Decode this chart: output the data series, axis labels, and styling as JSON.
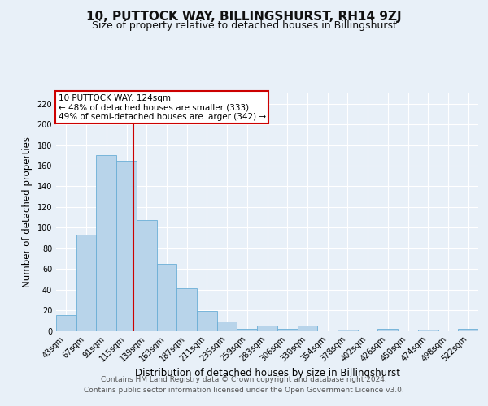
{
  "title": "10, PUTTOCK WAY, BILLINGSHURST, RH14 9ZJ",
  "subtitle": "Size of property relative to detached houses in Billingshurst",
  "xlabel": "Distribution of detached houses by size in Billingshurst",
  "ylabel": "Number of detached properties",
  "bin_labels": [
    "43sqm",
    "67sqm",
    "91sqm",
    "115sqm",
    "139sqm",
    "163sqm",
    "187sqm",
    "211sqm",
    "235sqm",
    "259sqm",
    "283sqm",
    "306sqm",
    "330sqm",
    "354sqm",
    "378sqm",
    "402sqm",
    "426sqm",
    "450sqm",
    "474sqm",
    "498sqm",
    "522sqm"
  ],
  "bin_values": [
    15,
    93,
    170,
    165,
    107,
    65,
    41,
    19,
    9,
    2,
    5,
    2,
    5,
    0,
    1,
    0,
    2,
    0,
    1,
    0,
    2
  ],
  "bar_color": "#b8d4ea",
  "bar_edge_color": "#6aaed6",
  "vline_x_index": 3.33,
  "vline_color": "#cc0000",
  "annotation_text": "10 PUTTOCK WAY: 124sqm\n← 48% of detached houses are smaller (333)\n49% of semi-detached houses are larger (342) →",
  "annotation_box_color": "#ffffff",
  "annotation_box_edge": "#cc0000",
  "ylim": [
    0,
    230
  ],
  "yticks": [
    0,
    20,
    40,
    60,
    80,
    100,
    120,
    140,
    160,
    180,
    200,
    220
  ],
  "footer_line1": "Contains HM Land Registry data © Crown copyright and database right 2024.",
  "footer_line2": "Contains public sector information licensed under the Open Government Licence v3.0.",
  "bg_color": "#e8f0f8",
  "plot_bg_color": "#e8f0f8",
  "grid_color": "#ffffff",
  "title_fontsize": 11,
  "subtitle_fontsize": 9,
  "axis_label_fontsize": 8.5,
  "tick_fontsize": 7,
  "annotation_fontsize": 7.5,
  "footer_fontsize": 6.5
}
